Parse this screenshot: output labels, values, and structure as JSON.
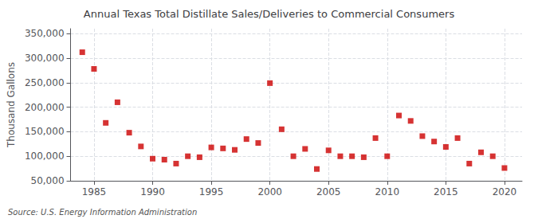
{
  "chart_data": {
    "type": "scatter",
    "title": "Annual Texas Total Distillate Sales/Deliveries to Commercial Consumers",
    "ylabel": "Thousand Gallons",
    "annotations": [
      "Source: U.S. Energy Information Administration"
    ],
    "color": "#cc0000",
    "marker": "square",
    "grid": true,
    "xlim": [
      1983.0,
      2021.5
    ],
    "ylim": [
      50000,
      360000
    ],
    "xticks": [
      1985,
      1990,
      1995,
      2000,
      2005,
      2010,
      2015,
      2020
    ],
    "yticks": [
      {
        "value": 50000,
        "label": "50,000"
      },
      {
        "value": 100000,
        "label": "100,000"
      },
      {
        "value": 150000,
        "label": "150,000"
      },
      {
        "value": 200000,
        "label": "200,000"
      },
      {
        "value": 250000,
        "label": "250,000"
      },
      {
        "value": 300000,
        "label": "300,000"
      },
      {
        "value": 350000,
        "label": "350,000"
      }
    ],
    "x": [
      1984,
      1985,
      1986,
      1987,
      1988,
      1989,
      1990,
      1991,
      1992,
      1993,
      1994,
      1995,
      1996,
      1997,
      1998,
      1999,
      2000,
      2001,
      2002,
      2003,
      2004,
      2005,
      2006,
      2007,
      2008,
      2009,
      2010,
      2011,
      2012,
      2013,
      2014,
      2015,
      2016,
      2017,
      2018,
      2019,
      2020
    ],
    "values": [
      312000,
      278000,
      168000,
      210000,
      148000,
      120000,
      95000,
      93000,
      85000,
      100000,
      98000,
      118000,
      116000,
      113000,
      135000,
      127000,
      249000,
      155000,
      100000,
      115000,
      74000,
      112000,
      100000,
      100000,
      98000,
      137000,
      100000,
      183000,
      172000,
      141000,
      130000,
      119000,
      137000,
      85000,
      108000,
      100000,
      76000
    ]
  }
}
